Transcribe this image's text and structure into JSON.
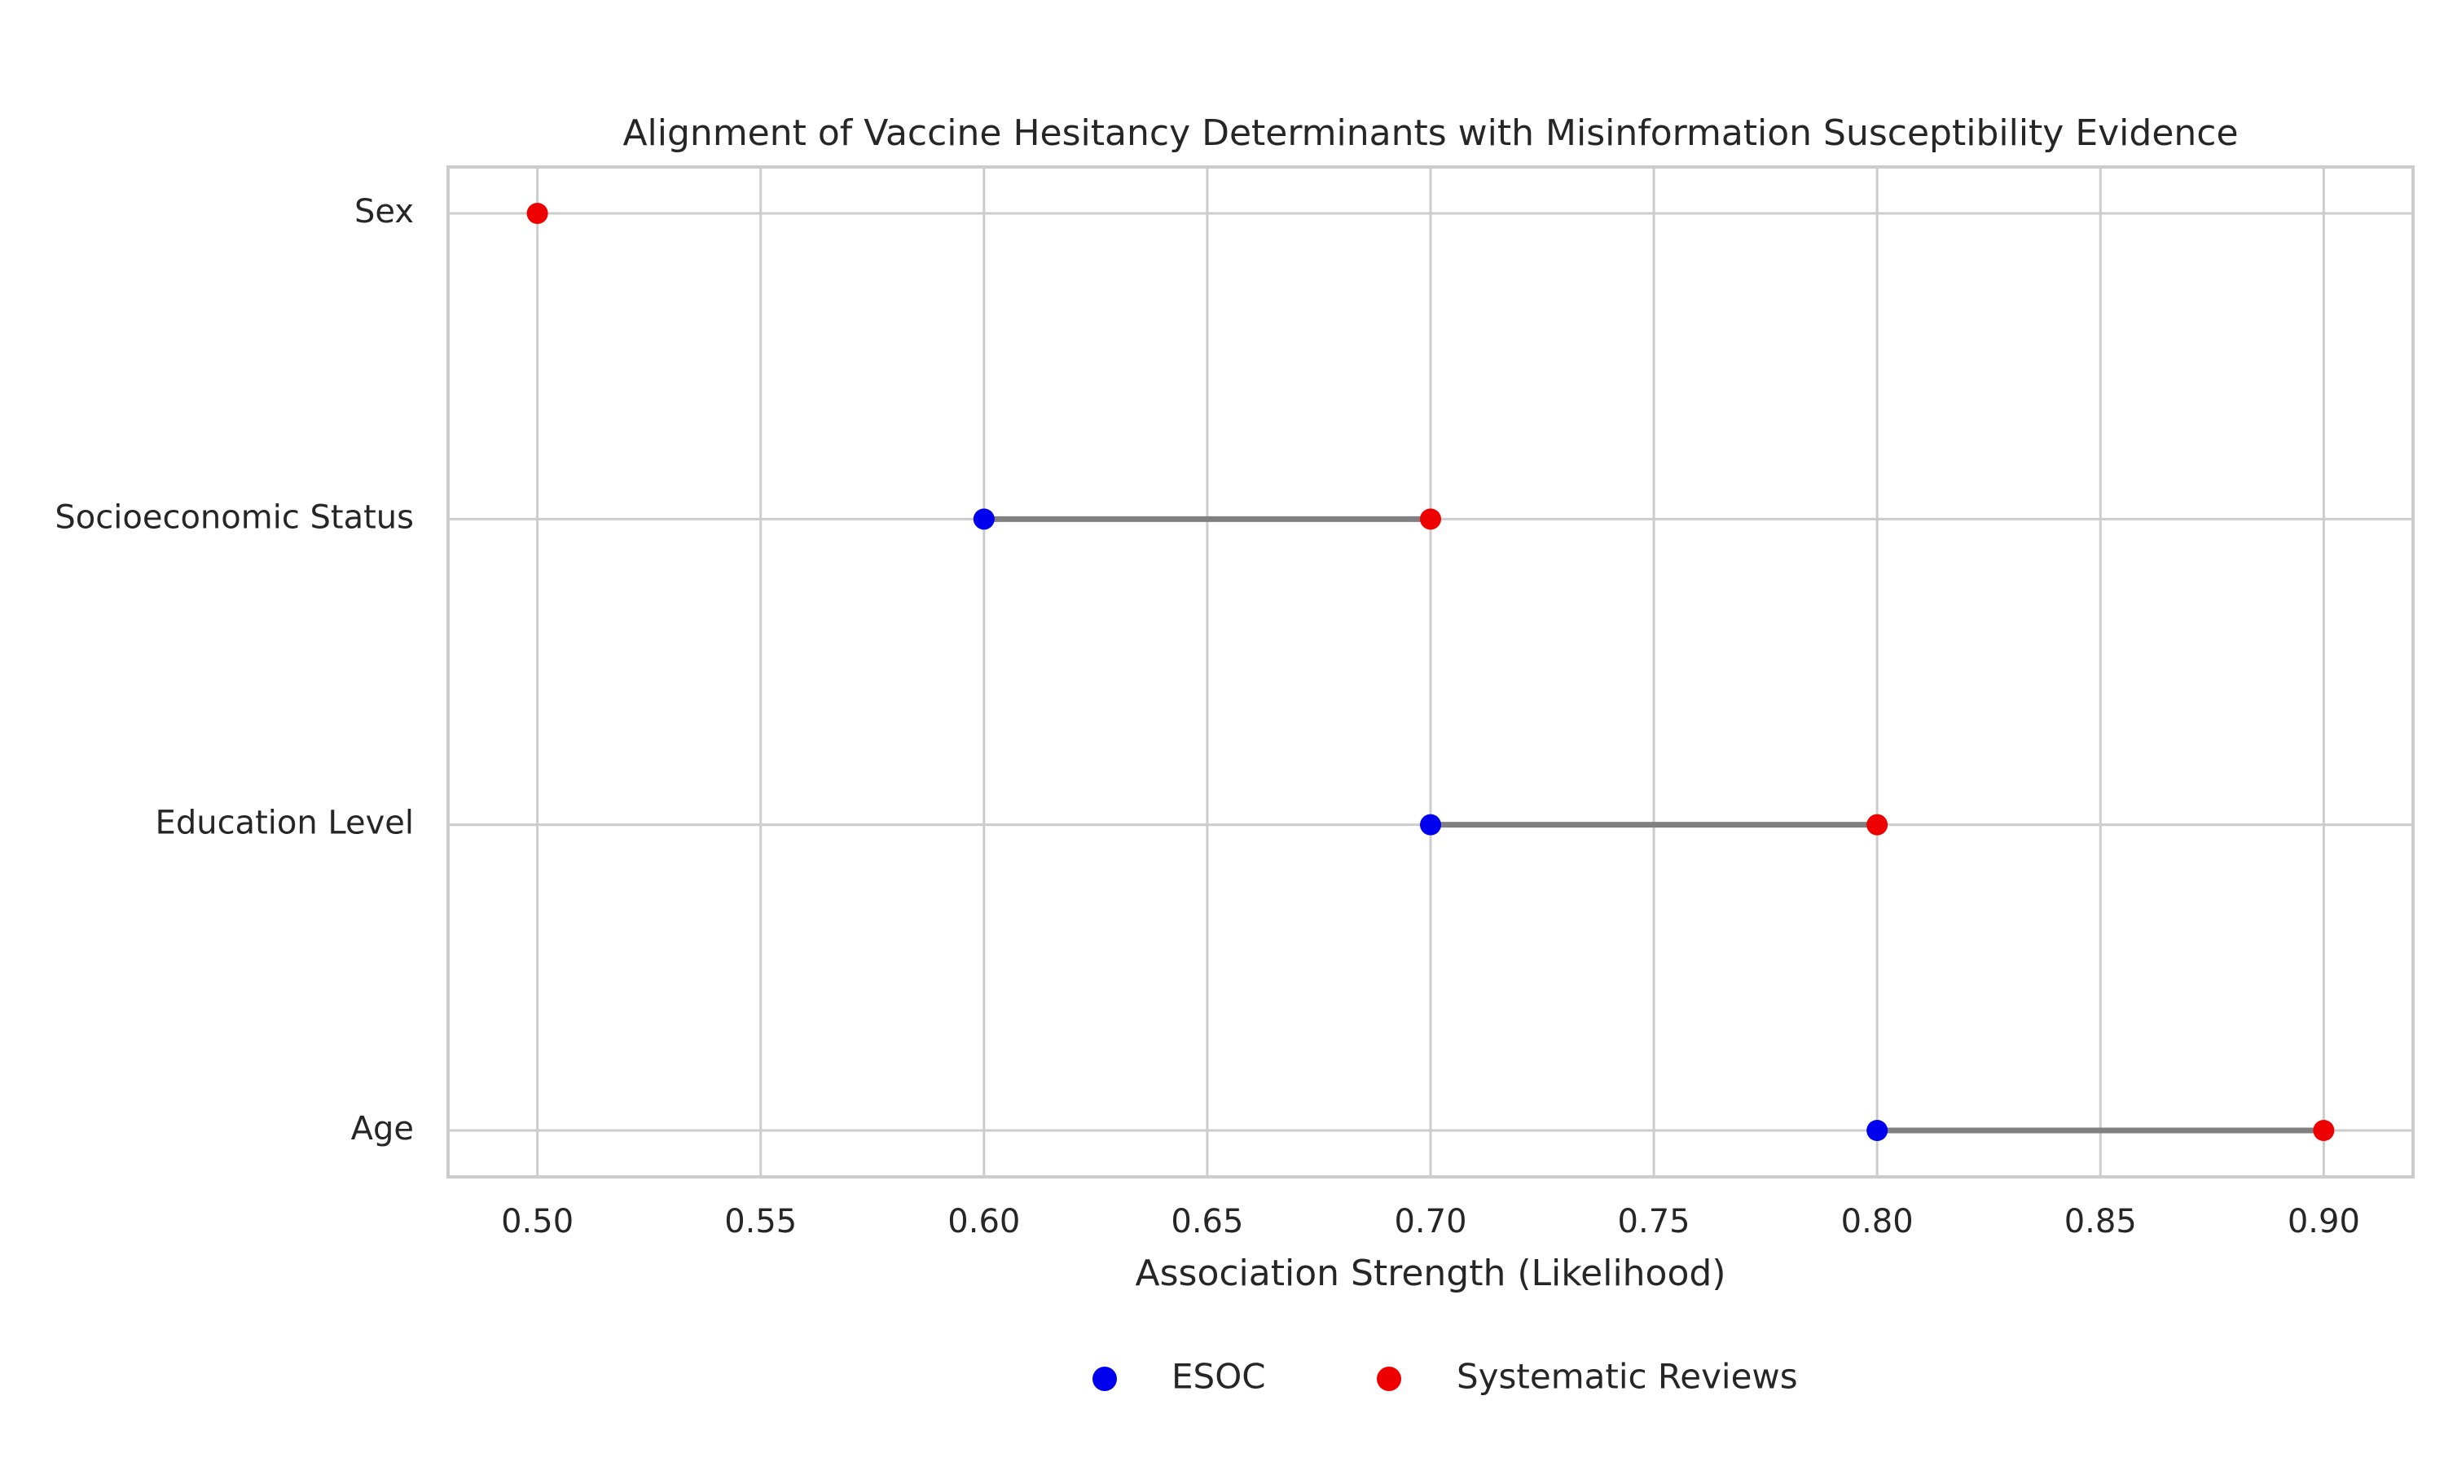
{
  "chart_data": {
    "type": "dumbbell",
    "title": "Alignment of Vaccine Hesitancy Determinants with Misinformation Susceptibility Evidence",
    "xlabel": "Association Strength (Likelihood)",
    "ylabel": "",
    "xlim": [
      0.48,
      0.92
    ],
    "xticks": [
      0.5,
      0.55,
      0.6,
      0.65,
      0.7,
      0.75,
      0.8,
      0.85,
      0.9
    ],
    "xtick_labels": [
      "0.50",
      "0.55",
      "0.60",
      "0.65",
      "0.70",
      "0.75",
      "0.80",
      "0.85",
      "0.90"
    ],
    "categories": [
      "Sex",
      "Socioeconomic Status",
      "Education Level",
      "Age"
    ],
    "series": [
      {
        "name": "ESOC",
        "color": "#0000ee",
        "values": [
          null,
          0.6,
          0.7,
          0.8
        ]
      },
      {
        "name": "Systematic Reviews",
        "color": "#ee0000",
        "values": [
          0.5,
          0.7,
          0.8,
          0.9
        ]
      }
    ],
    "connector_color": "#808080",
    "grid": true,
    "legend_position": "bottom-center"
  }
}
